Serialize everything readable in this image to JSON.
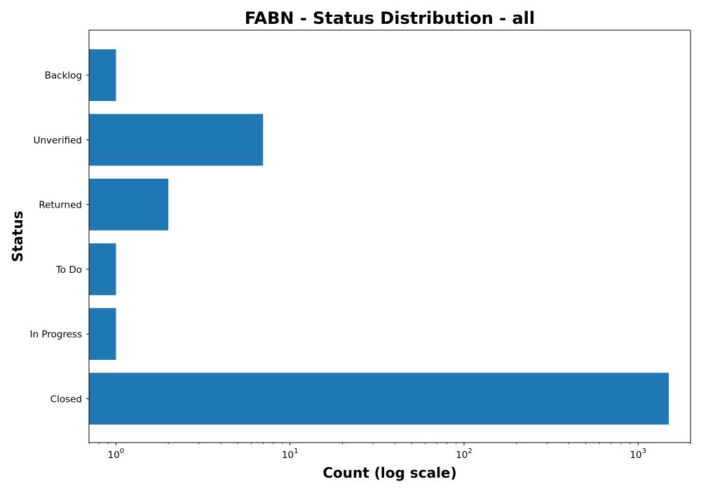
{
  "chart_data": {
    "type": "bar",
    "orientation": "horizontal",
    "title": "FABN - Status Distribution - all",
    "xlabel": "Count (log scale)",
    "ylabel": "Status",
    "x_scale": "log",
    "xlim": [
      0.7,
      2000
    ],
    "x_major_ticks": [
      {
        "value": 1,
        "base": "10",
        "exponent": "0"
      },
      {
        "value": 10,
        "base": "10",
        "exponent": "1"
      },
      {
        "value": 100,
        "base": "10",
        "exponent": "2"
      },
      {
        "value": 1000,
        "base": "10",
        "exponent": "3"
      }
    ],
    "categories": [
      "Backlog",
      "Unverified",
      "Returned",
      "To Do",
      "In Progress",
      "Closed"
    ],
    "values": [
      1,
      7,
      2,
      1,
      1,
      1500
    ],
    "bar_color": "#1f77b4",
    "grid": false,
    "legend": "none"
  }
}
